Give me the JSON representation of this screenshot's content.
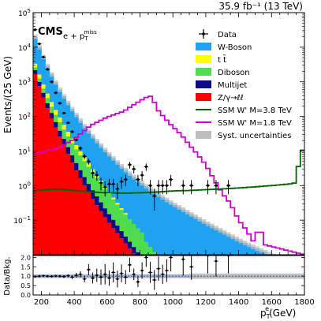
{
  "chart_data": {
    "type": "histogram-stacked-log",
    "lumi_text": "35.9 fb⁻¹ (13 TeV)",
    "experiment": "CMS",
    "channel_text": "e + p",
    "channel_sup": "miss",
    "channel_sub": "T",
    "ylabel": "Events/(25 GeV)",
    "ratio_ylabel": "Data/Bkg.",
    "xlabel_main": "p",
    "xlabel_sup": "e",
    "xlabel_sub": "T",
    "xlabel_unit": "(GeV)",
    "x_range": [
      150,
      1800
    ],
    "bin_width": 25,
    "y_range_log": [
      0.01,
      100000
    ],
    "y_ticks": [
      {
        "v": 100000,
        "base": "10",
        "exp": "5"
      },
      {
        "v": 10000,
        "base": "10",
        "exp": "4"
      },
      {
        "v": 1000,
        "base": "10",
        "exp": "3"
      },
      {
        "v": 100,
        "base": "10",
        "exp": "2"
      },
      {
        "v": 10,
        "base": "10",
        "exp": "1"
      },
      {
        "v": 1,
        "base": "10",
        "exp": "0"
      },
      {
        "v": 0.1,
        "base": "10",
        "exp": "−1"
      }
    ],
    "x_ticks": [
      200,
      400,
      600,
      800,
      1000,
      1200,
      1400,
      1600,
      1800
    ],
    "ratio_range": [
      0,
      2.1
    ],
    "ratio_ticks": [
      0.0,
      0.5,
      1.0,
      1.5,
      2.0
    ],
    "legend": [
      {
        "label": "Data",
        "kind": "marker"
      },
      {
        "label": "W-Boson",
        "kind": "fill",
        "color": "#1fa3f0"
      },
      {
        "label": "t t̄",
        "kind": "fill",
        "color": "#ffff00"
      },
      {
        "label": "Diboson",
        "kind": "fill",
        "color": "#4fdc4f"
      },
      {
        "label": "Multijet",
        "kind": "fill",
        "color": "#0b0b8c"
      },
      {
        "label": "Z/γ→ℓℓ",
        "kind": "fill",
        "color": "#ff0000"
      },
      {
        "label": "SSM W' M=3.8 TeV",
        "kind": "line",
        "color": "#006400"
      },
      {
        "label": "SSM W' M=1.8 TeV",
        "kind": "line",
        "color": "#cc00cc"
      },
      {
        "label": "Syst. uncertainties",
        "kind": "fill",
        "color": "#bdbdbd"
      }
    ],
    "colors": {
      "wboson": "#1fa3f0",
      "ttbar": "#ffff00",
      "diboson": "#4fdc4f",
      "multijet": "#0b0b8c",
      "zll": "#ff0000",
      "syst": "#bdbdbd",
      "ssm38": "#006400",
      "ssm18": "#cc00cc",
      "ratio_band": "#8ea0cc"
    },
    "series": [
      {
        "name": "Z/γ→ℓℓ",
        "key": "zll",
        "x": [
          150,
          200,
          250,
          300,
          350,
          400,
          450,
          500,
          550,
          600,
          650,
          700,
          750,
          800
        ],
        "y": [
          2500,
          500,
          120,
          35,
          11,
          3.5,
          1.3,
          0.5,
          0.22,
          0.1,
          0.05,
          0.025,
          0.013,
          0.007
        ]
      },
      {
        "name": "Multijet",
        "key": "multijet",
        "x": [
          150,
          200,
          250,
          300,
          350,
          400,
          450,
          500,
          550,
          600,
          650,
          700,
          750,
          800
        ],
        "y": [
          700,
          180,
          50,
          16,
          6,
          2.2,
          0.9,
          0.4,
          0.18,
          0.08,
          0.035,
          0.015,
          0.007,
          0.003
        ]
      },
      {
        "name": "Diboson",
        "key": "diboson",
        "x": [
          150,
          200,
          250,
          300,
          350,
          400,
          450,
          500,
          550,
          600,
          650,
          700,
          750,
          800,
          850,
          900
        ],
        "y": [
          600,
          200,
          80,
          35,
          16,
          8,
          4,
          2,
          1,
          0.5,
          0.25,
          0.13,
          0.07,
          0.04,
          0.02,
          0.01
        ]
      },
      {
        "name": "t t̄",
        "key": "ttbar",
        "x": [
          150,
          200,
          250,
          300,
          350,
          400,
          450,
          500,
          550,
          600,
          650,
          700
        ],
        "y": [
          1000,
          250,
          90,
          32,
          12,
          4.5,
          1.7,
          0.7,
          0.28,
          0.1,
          0.04,
          0.015
        ]
      },
      {
        "name": "W-Boson",
        "key": "wboson",
        "x": [
          150,
          200,
          250,
          300,
          350,
          400,
          450,
          500,
          550,
          600,
          650,
          700,
          750,
          800,
          850,
          900,
          950,
          1000,
          1100,
          1200,
          1300,
          1400,
          1500,
          1600,
          1700,
          1775
        ],
        "y": [
          24000,
          6000,
          1800,
          620,
          260,
          115,
          55,
          28,
          15,
          8.5,
          5,
          3,
          1.9,
          1.25,
          0.85,
          0.6,
          0.42,
          0.3,
          0.16,
          0.085,
          0.048,
          0.027,
          0.016,
          0.01,
          0.006,
          0.004
        ]
      }
    ],
    "syst_rel": 0.15,
    "signal_38": {
      "name": "SSM W' M=3.8 TeV",
      "x": [
        150,
        300,
        500,
        600,
        700,
        800,
        900,
        1000,
        1100,
        1200,
        1300,
        1400,
        1500,
        1600,
        1700,
        1750,
        1775,
        1800
      ],
      "y": [
        0.7,
        0.8,
        0.65,
        0.62,
        0.6,
        0.62,
        0.65,
        0.7,
        0.72,
        0.76,
        0.8,
        0.85,
        0.92,
        1.0,
        1.1,
        1.2,
        10.5,
        10.5
      ]
    },
    "signal_18": {
      "name": "SSM W' M=1.8 TeV",
      "x": [
        150,
        300,
        400,
        500,
        600,
        700,
        750,
        800,
        850,
        875,
        900,
        950,
        1000,
        1050,
        1100,
        1150,
        1200,
        1250,
        1300,
        1350,
        1400,
        1450,
        1500,
        1525,
        1550,
        1800
      ],
      "y": [
        8,
        12,
        22,
        55,
        95,
        140,
        200,
        280,
        380,
        380,
        170,
        90,
        50,
        30,
        15,
        8,
        4,
        1.5,
        0.6,
        0.3,
        0.1,
        0.05,
        0.02,
        0.1,
        0.02,
        0.01
      ]
    },
    "data_points": {
      "x": [
        162.5,
        187.5,
        212.5,
        237.5,
        262.5,
        287.5,
        312.5,
        337.5,
        362.5,
        387.5,
        412.5,
        437.5,
        462.5,
        487.5,
        512.5,
        537.5,
        562.5,
        587.5,
        612.5,
        637.5,
        662.5,
        687.5,
        712.5,
        737.5,
        762.5,
        787.5,
        812.5,
        837.5,
        862.5,
        887.5,
        912.5,
        937.5,
        962.5,
        987.5,
        1062.5,
        1112.5,
        1212.5,
        1262.5,
        1337.5
      ],
      "y": [
        32000,
        12500,
        5200,
        2300,
        1000,
        480,
        240,
        125,
        65,
        36,
        21,
        12,
        7,
        5,
        2.3,
        2.0,
        1.2,
        0.9,
        1.1,
        1.1,
        0.8,
        1.3,
        1.5,
        4,
        3,
        1.5,
        2,
        3.5,
        1,
        0.5,
        1,
        1,
        1,
        1.5,
        1,
        1,
        1,
        1,
        1
      ],
      "ratio": [
        0.98,
        1.0,
        1.02,
        1.0,
        0.99,
        1.01,
        1.0,
        0.98,
        1.02,
        0.95,
        1.05,
        1.1,
        0.85,
        1.35,
        0.9,
        1.05,
        0.95,
        1.1,
        0.9,
        1.2,
        0.85,
        1.15,
        0.95,
        1.6,
        1.1,
        0.7,
        1.3,
        2.0,
        1.2,
        0.8,
        1.4,
        1.1,
        1.3,
        2.0,
        1.9,
        1.5,
        2.1,
        1.8,
        2.1
      ]
    }
  }
}
